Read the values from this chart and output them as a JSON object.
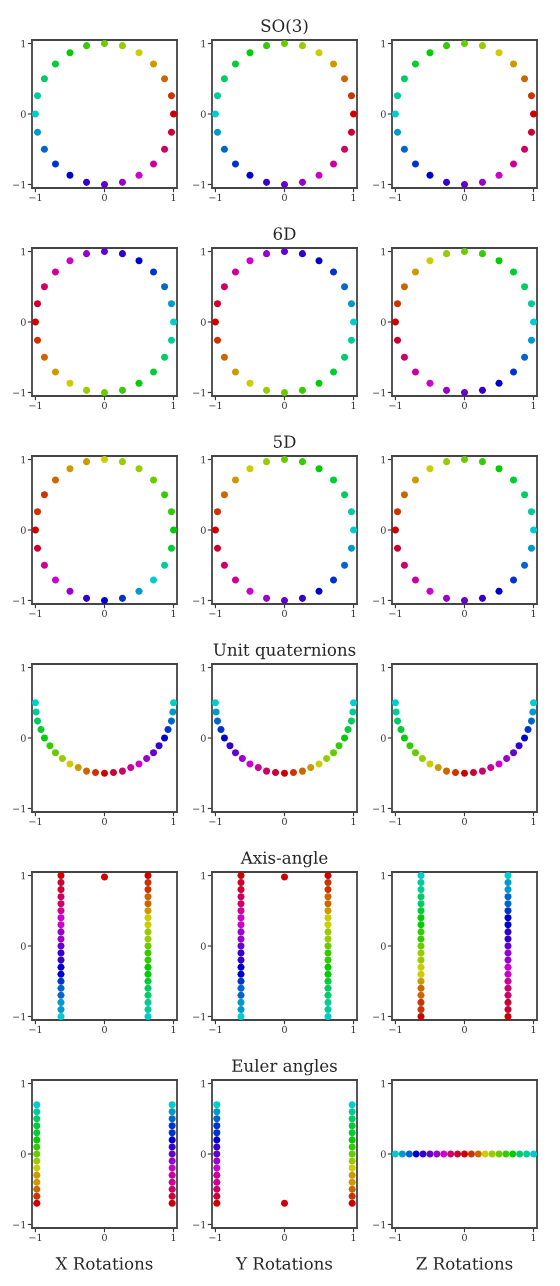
{
  "chart_data": [
    {
      "type": "scatter",
      "marker": "circle",
      "xlim": [
        -1.05,
        1.05
      ],
      "ylim": [
        -1.05,
        1.05
      ],
      "xticks": [
        -1,
        0,
        1
      ],
      "yticks": [
        -1,
        0,
        1
      ],
      "series": [
        {
          "x": [
            1,
            0.97,
            0.87,
            0.71,
            0.5,
            0.26,
            0,
            -0.26,
            -0.5,
            -0.71,
            -0.87,
            -0.97,
            -1,
            -0.97,
            -0.87,
            -0.71,
            -0.5,
            -0.26,
            0,
            0.26,
            0.5,
            0.71,
            0.87,
            0.97
          ],
          "values": [
            0,
            0.26,
            0.5,
            0.71,
            0.87,
            0.97,
            1,
            0.97,
            0.87,
            0.71,
            0.5,
            0.26,
            0,
            -0.26,
            -0.5,
            -0.71,
            -0.87,
            -0.97,
            -1,
            -0.97,
            -0.87,
            -0.71,
            -0.5,
            -0.26
          ],
          "colors": [
            "#cc0000",
            "#cc3300",
            "#cc6600",
            "#cc9900",
            "#cccc00",
            "#99cc00",
            "#66cc00",
            "#33cc00",
            "#00cc00",
            "#00cc33",
            "#00cc66",
            "#00cc99",
            "#00cccc",
            "#0099cc",
            "#0066cc",
            "#0033cc",
            "#0000cc",
            "#3300cc",
            "#6600cc",
            "#9900cc",
            "#cc00cc",
            "#cc0099",
            "#cc0066",
            "#cc0033"
          ]
        }
      ]
    },
    {
      "type": "scatter",
      "title": "SO(3)",
      "marker": "circle",
      "xlim": [
        -1.05,
        1.05
      ],
      "ylim": [
        -1.05,
        1.05
      ],
      "xticks": [
        -1,
        0,
        1
      ],
      "yticks": [
        -1,
        0,
        1
      ],
      "series": [
        {
          "x": [
            1,
            0.97,
            0.87,
            0.71,
            0.5,
            0.26,
            0,
            -0.26,
            -0.5,
            -0.71,
            -0.87,
            -0.97,
            -1,
            -0.97,
            -0.87,
            -0.71,
            -0.5,
            -0.26,
            0,
            0.26,
            0.5,
            0.71,
            0.87,
            0.97
          ],
          "values": [
            0,
            0.26,
            0.5,
            0.71,
            0.87,
            0.97,
            1,
            0.97,
            0.87,
            0.71,
            0.5,
            0.26,
            0,
            -0.26,
            -0.5,
            -0.71,
            -0.87,
            -0.97,
            -1,
            -0.97,
            -0.87,
            -0.71,
            -0.5,
            -0.26
          ],
          "colors": [
            "#cc0000",
            "#cc3300",
            "#cc6600",
            "#cc9900",
            "#cccc00",
            "#99cc00",
            "#66cc00",
            "#33cc00",
            "#00cc00",
            "#00cc33",
            "#00cc66",
            "#00cc99",
            "#00cccc",
            "#0099cc",
            "#0066cc",
            "#0033cc",
            "#0000cc",
            "#3300cc",
            "#6600cc",
            "#9900cc",
            "#cc00cc",
            "#cc0099",
            "#cc0066",
            "#cc0033"
          ]
        }
      ]
    },
    {
      "type": "scatter",
      "marker": "circle",
      "xlim": [
        -1.05,
        1.05
      ],
      "ylim": [
        -1.05,
        1.05
      ],
      "xticks": [
        -1,
        0,
        1
      ],
      "yticks": [
        -1,
        0,
        1
      ],
      "series": [
        {
          "x": [
            1,
            0.97,
            0.87,
            0.71,
            0.5,
            0.26,
            0,
            -0.26,
            -0.5,
            -0.71,
            -0.87,
            -0.97,
            -1,
            -0.97,
            -0.87,
            -0.71,
            -0.5,
            -0.26,
            0,
            0.26,
            0.5,
            0.71,
            0.87,
            0.97
          ],
          "values": [
            0,
            0.26,
            0.5,
            0.71,
            0.87,
            0.97,
            1,
            0.97,
            0.87,
            0.71,
            0.5,
            0.26,
            0,
            -0.26,
            -0.5,
            -0.71,
            -0.87,
            -0.97,
            -1,
            -0.97,
            -0.87,
            -0.71,
            -0.5,
            -0.26
          ],
          "colors": [
            "#cc0000",
            "#cc3300",
            "#cc6600",
            "#cc9900",
            "#cccc00",
            "#99cc00",
            "#66cc00",
            "#33cc00",
            "#00cc00",
            "#00cc33",
            "#00cc66",
            "#00cc99",
            "#00cccc",
            "#0099cc",
            "#0066cc",
            "#0033cc",
            "#0000cc",
            "#3300cc",
            "#6600cc",
            "#9900cc",
            "#cc00cc",
            "#cc0099",
            "#cc0066",
            "#cc0033"
          ]
        }
      ]
    },
    {
      "type": "scatter",
      "marker": "circle",
      "xlim": [
        -1.05,
        1.05
      ],
      "ylim": [
        -1.05,
        1.05
      ],
      "xticks": [
        -1,
        0,
        1
      ],
      "yticks": [
        -1,
        0,
        1
      ],
      "series": [
        {
          "x": [
            1,
            0.97,
            0.87,
            0.71,
            0.5,
            0.26,
            0,
            -0.26,
            -0.5,
            -0.71,
            -0.87,
            -0.97,
            -1,
            -0.97,
            -0.87,
            -0.71,
            -0.5,
            -0.26,
            0,
            0.26,
            0.5,
            0.71,
            0.87,
            0.97
          ],
          "values": [
            0,
            0.26,
            0.5,
            0.71,
            0.87,
            0.97,
            1,
            0.97,
            0.87,
            0.71,
            0.5,
            0.26,
            0,
            -0.26,
            -0.5,
            -0.71,
            -0.87,
            -0.97,
            -1,
            -0.97,
            -0.87,
            -0.71,
            -0.5,
            -0.26
          ],
          "colors": [
            "#00cccc",
            "#0099cc",
            "#0066cc",
            "#0033cc",
            "#0000cc",
            "#3300cc",
            "#6600cc",
            "#9900cc",
            "#cc00cc",
            "#cc0099",
            "#cc0066",
            "#cc0033",
            "#cc0000",
            "#cc3300",
            "#cc6600",
            "#cc9900",
            "#cccc00",
            "#99cc00",
            "#66cc00",
            "#33cc00",
            "#00cc00",
            "#00cc33",
            "#00cc66",
            "#00cc99"
          ]
        }
      ]
    },
    {
      "type": "scatter",
      "title": "6D",
      "marker": "circle",
      "xlim": [
        -1.05,
        1.05
      ],
      "ylim": [
        -1.05,
        1.05
      ],
      "xticks": [
        -1,
        0,
        1
      ],
      "yticks": [
        -1,
        0,
        1
      ],
      "series": [
        {
          "x": [
            1,
            0.97,
            0.87,
            0.71,
            0.5,
            0.26,
            0,
            -0.26,
            -0.5,
            -0.71,
            -0.87,
            -0.97,
            -1,
            -0.97,
            -0.87,
            -0.71,
            -0.5,
            -0.26,
            0,
            0.26,
            0.5,
            0.71,
            0.87,
            0.97
          ],
          "values": [
            0,
            0.26,
            0.5,
            0.71,
            0.87,
            0.97,
            1,
            0.97,
            0.87,
            0.71,
            0.5,
            0.26,
            0,
            -0.26,
            -0.5,
            -0.71,
            -0.87,
            -0.97,
            -1,
            -0.97,
            -0.87,
            -0.71,
            -0.5,
            -0.26
          ],
          "colors": [
            "#00cccc",
            "#0099cc",
            "#0066cc",
            "#0033cc",
            "#0000cc",
            "#3300cc",
            "#6600cc",
            "#9900cc",
            "#cc00cc",
            "#cc0099",
            "#cc0066",
            "#cc0033",
            "#cc0000",
            "#cc3300",
            "#cc6600",
            "#cc9900",
            "#cccc00",
            "#99cc00",
            "#66cc00",
            "#33cc00",
            "#00cc00",
            "#00cc33",
            "#00cc66",
            "#00cc99"
          ]
        }
      ]
    },
    {
      "type": "scatter",
      "marker": "circle",
      "xlim": [
        -1.05,
        1.05
      ],
      "ylim": [
        -1.05,
        1.05
      ],
      "xticks": [
        -1,
        0,
        1
      ],
      "yticks": [
        -1,
        0,
        1
      ],
      "series": [
        {
          "x": [
            1,
            0.97,
            0.87,
            0.71,
            0.5,
            0.26,
            0,
            -0.26,
            -0.5,
            -0.71,
            -0.87,
            -0.97,
            -1,
            -0.97,
            -0.87,
            -0.71,
            -0.5,
            -0.26,
            0,
            0.26,
            0.5,
            0.71,
            0.87,
            0.97
          ],
          "values": [
            0,
            0.26,
            0.5,
            0.71,
            0.87,
            0.97,
            1,
            0.97,
            0.87,
            0.71,
            0.5,
            0.26,
            0,
            -0.26,
            -0.5,
            -0.71,
            -0.87,
            -0.97,
            -1,
            -0.97,
            -0.87,
            -0.71,
            -0.5,
            -0.26
          ],
          "colors": [
            "#00cccc",
            "#00cc99",
            "#00cc66",
            "#00cc33",
            "#00cc00",
            "#33cc00",
            "#66cc00",
            "#99cc00",
            "#cccc00",
            "#cc9900",
            "#cc6600",
            "#cc3300",
            "#cc0000",
            "#cc0033",
            "#cc0066",
            "#cc0099",
            "#cc00cc",
            "#9900cc",
            "#6600cc",
            "#3300cc",
            "#0000cc",
            "#0033cc",
            "#0066cc",
            "#0099cc"
          ]
        }
      ]
    },
    {
      "type": "scatter",
      "marker": "circle",
      "xlim": [
        -1.05,
        1.05
      ],
      "ylim": [
        -1.05,
        1.05
      ],
      "xticks": [
        -1,
        0,
        1
      ],
      "yticks": [
        -1,
        0,
        1
      ],
      "series": [
        {
          "x": [
            1,
            0.97,
            0.87,
            0.71,
            0.5,
            0.26,
            0,
            -0.26,
            -0.5,
            -0.71,
            -0.87,
            -0.97,
            -1,
            -0.97,
            -0.87,
            -0.71,
            -0.5,
            -0.26,
            0,
            0.26,
            0.5,
            0.71,
            0.87,
            0.97
          ],
          "values": [
            0,
            0.26,
            0.5,
            0.71,
            0.87,
            0.97,
            1,
            0.97,
            0.87,
            0.71,
            0.5,
            0.26,
            0,
            -0.26,
            -0.5,
            -0.71,
            -0.87,
            -0.97,
            -1,
            -0.97,
            -0.87,
            -0.71,
            -0.5,
            -0.26
          ],
          "colors": [
            "#00cc00",
            "#33cc00",
            "#33cc00",
            "#66cc00",
            "#99cc00",
            "#99cc00",
            "#cccc00",
            "#cc9900",
            "#cc9900",
            "#cc6600",
            "#cc3300",
            "#cc3300",
            "#cc0000",
            "#cc0033",
            "#cc0099",
            "#cc00cc",
            "#9900cc",
            "#3300cc",
            "#0000cc",
            "#0033cc",
            "#0099cc",
            "#00cccc",
            "#00cc99",
            "#00cc33"
          ]
        }
      ]
    },
    {
      "type": "scatter",
      "title": "5D",
      "marker": "circle",
      "xlim": [
        -1.05,
        1.05
      ],
      "ylim": [
        -1.05,
        1.05
      ],
      "xticks": [
        -1,
        0,
        1
      ],
      "yticks": [
        -1,
        0,
        1
      ],
      "series": [
        {
          "x": [
            1,
            0.97,
            0.87,
            0.71,
            0.5,
            0.26,
            0,
            -0.26,
            -0.5,
            -0.71,
            -0.87,
            -0.97,
            -1,
            -0.97,
            -0.87,
            -0.71,
            -0.5,
            -0.26,
            0,
            0.26,
            0.5,
            0.71,
            0.87,
            0.97
          ],
          "values": [
            0,
            0.26,
            0.5,
            0.71,
            0.87,
            0.97,
            1,
            0.97,
            0.87,
            0.71,
            0.5,
            0.26,
            0,
            -0.26,
            -0.5,
            -0.71,
            -0.87,
            -0.97,
            -1,
            -0.97,
            -0.87,
            -0.71,
            -0.5,
            -0.26
          ],
          "colors": [
            "#00cccc",
            "#00cc99",
            "#00cc66",
            "#00cc33",
            "#00cc00",
            "#33cc00",
            "#66cc00",
            "#99cc00",
            "#cccc00",
            "#cc9900",
            "#cc6600",
            "#cc3300",
            "#cc0000",
            "#cc0033",
            "#cc0066",
            "#cc0099",
            "#cc00cc",
            "#9900cc",
            "#6600cc",
            "#3300cc",
            "#0000cc",
            "#0033cc",
            "#0066cc",
            "#0099cc"
          ]
        }
      ]
    },
    {
      "type": "scatter",
      "marker": "circle",
      "xlim": [
        -1.05,
        1.05
      ],
      "ylim": [
        -1.05,
        1.05
      ],
      "xticks": [
        -1,
        0,
        1
      ],
      "yticks": [
        -1,
        0,
        1
      ],
      "series": [
        {
          "x": [
            1,
            0.97,
            0.87,
            0.71,
            0.5,
            0.26,
            0,
            -0.26,
            -0.5,
            -0.71,
            -0.87,
            -0.97,
            -1,
            -0.97,
            -0.87,
            -0.71,
            -0.5,
            -0.26,
            0,
            0.26,
            0.5,
            0.71,
            0.87,
            0.97
          ],
          "values": [
            0,
            0.26,
            0.5,
            0.71,
            0.87,
            0.97,
            1,
            0.97,
            0.87,
            0.71,
            0.5,
            0.26,
            0,
            -0.26,
            -0.5,
            -0.71,
            -0.87,
            -0.97,
            -1,
            -0.97,
            -0.87,
            -0.71,
            -0.5,
            -0.26
          ],
          "colors": [
            "#00cccc",
            "#00cc99",
            "#00cc66",
            "#00cc33",
            "#00cc00",
            "#33cc00",
            "#66cc00",
            "#99cc00",
            "#cccc00",
            "#cc9900",
            "#cc6600",
            "#cc3300",
            "#cc0000",
            "#cc0033",
            "#cc0066",
            "#cc0099",
            "#cc00cc",
            "#9900cc",
            "#6600cc",
            "#3300cc",
            "#0000cc",
            "#0033cc",
            "#0066cc",
            "#0099cc"
          ]
        }
      ]
    },
    {
      "type": "scatter",
      "marker": "circle",
      "xlim": [
        -1.05,
        1.05
      ],
      "ylim": [
        -1.05,
        1.05
      ],
      "xticks": [
        -1,
        0,
        1
      ],
      "yticks": [
        -1,
        0,
        1
      ],
      "series": [
        {
          "x": [
            -1,
            -0.99,
            -0.97,
            -0.92,
            -0.87,
            -0.79,
            -0.71,
            -0.61,
            -0.5,
            -0.38,
            -0.26,
            -0.13,
            0,
            0.13,
            0.26,
            0.38,
            0.5,
            0.61,
            0.71,
            0.79,
            0.87,
            0.92,
            0.97,
            0.99,
            1
          ],
          "values": [
            0.5,
            0.37,
            0.24,
            0.12,
            0,
            -0.11,
            -0.21,
            -0.29,
            -0.37,
            -0.42,
            -0.47,
            -0.49,
            -0.5,
            -0.49,
            -0.47,
            -0.42,
            -0.37,
            -0.29,
            -0.21,
            -0.11,
            0,
            0.12,
            0.24,
            0.37,
            0.5
          ],
          "colors": [
            "#00cccc",
            "#00cc99",
            "#00cc66",
            "#00cc33",
            "#00cc00",
            "#33cc00",
            "#66cc00",
            "#99cc00",
            "#cccc00",
            "#cc9900",
            "#cc6600",
            "#cc3300",
            "#cc0000",
            "#cc0033",
            "#cc0066",
            "#cc0099",
            "#cc00cc",
            "#9900cc",
            "#6600cc",
            "#3300cc",
            "#0000cc",
            "#0033cc",
            "#0066cc",
            "#0099cc",
            "#00cccc"
          ]
        }
      ]
    },
    {
      "type": "scatter",
      "title": "Unit quaternions",
      "marker": "circle",
      "xlim": [
        -1.05,
        1.05
      ],
      "ylim": [
        -1.05,
        1.05
      ],
      "xticks": [
        -1,
        0,
        1
      ],
      "yticks": [
        -1,
        0,
        1
      ],
      "series": [
        {
          "x": [
            -1,
            -0.99,
            -0.97,
            -0.92,
            -0.87,
            -0.79,
            -0.71,
            -0.61,
            -0.5,
            -0.38,
            -0.26,
            -0.13,
            0,
            0.13,
            0.26,
            0.38,
            0.5,
            0.61,
            0.71,
            0.79,
            0.87,
            0.92,
            0.97,
            0.99,
            1
          ],
          "values": [
            0.5,
            0.37,
            0.24,
            0.12,
            0,
            -0.11,
            -0.21,
            -0.29,
            -0.37,
            -0.42,
            -0.47,
            -0.49,
            -0.5,
            -0.49,
            -0.47,
            -0.42,
            -0.37,
            -0.29,
            -0.21,
            -0.11,
            0,
            0.12,
            0.24,
            0.37,
            0.5
          ],
          "colors": [
            "#00cccc",
            "#0099cc",
            "#0066cc",
            "#0033cc",
            "#0000cc",
            "#3300cc",
            "#6600cc",
            "#9900cc",
            "#cc00cc",
            "#cc0099",
            "#cc0066",
            "#cc0033",
            "#cc0000",
            "#cc3300",
            "#cc6600",
            "#cc9900",
            "#cccc00",
            "#99cc00",
            "#66cc00",
            "#33cc00",
            "#00cc00",
            "#00cc33",
            "#00cc66",
            "#00cc99",
            "#00cccc"
          ]
        }
      ]
    },
    {
      "type": "scatter",
      "marker": "circle",
      "xlim": [
        -1.05,
        1.05
      ],
      "ylim": [
        -1.05,
        1.05
      ],
      "xticks": [
        -1,
        0,
        1
      ],
      "yticks": [
        -1,
        0,
        1
      ],
      "series": [
        {
          "x": [
            -1,
            -0.99,
            -0.97,
            -0.92,
            -0.87,
            -0.79,
            -0.71,
            -0.61,
            -0.5,
            -0.38,
            -0.26,
            -0.13,
            0,
            0.13,
            0.26,
            0.38,
            0.5,
            0.61,
            0.71,
            0.79,
            0.87,
            0.92,
            0.97,
            0.99,
            1
          ],
          "values": [
            0.5,
            0.37,
            0.24,
            0.12,
            0,
            -0.11,
            -0.21,
            -0.29,
            -0.37,
            -0.42,
            -0.47,
            -0.49,
            -0.5,
            -0.49,
            -0.47,
            -0.42,
            -0.37,
            -0.29,
            -0.21,
            -0.11,
            0,
            0.12,
            0.24,
            0.37,
            0.5
          ],
          "colors": [
            "#00cccc",
            "#00cc99",
            "#00cc66",
            "#00cc33",
            "#00cc00",
            "#33cc00",
            "#66cc00",
            "#99cc00",
            "#cccc00",
            "#cc9900",
            "#cc6600",
            "#cc3300",
            "#cc0000",
            "#cc0033",
            "#cc0066",
            "#cc0099",
            "#cc00cc",
            "#9900cc",
            "#6600cc",
            "#3300cc",
            "#0000cc",
            "#0033cc",
            "#0066cc",
            "#0099cc",
            "#00cccc"
          ]
        }
      ]
    },
    {
      "type": "scatter",
      "marker": "circle",
      "xlim": [
        -1.05,
        1.05
      ],
      "ylim": [
        -1.05,
        1.05
      ],
      "xticks": [
        -1,
        0,
        1
      ],
      "yticks": [
        -1,
        0,
        1
      ],
      "series": [
        {
          "x": [
            -0.63,
            -0.63,
            -0.63,
            -0.63,
            -0.63,
            -0.63,
            -0.63,
            -0.63,
            -0.63,
            -0.63,
            -0.63,
            -0.63,
            -0.63,
            -0.63,
            -0.63,
            -0.63,
            -0.63,
            -0.63,
            -0.63,
            -0.63,
            -0.63,
            0.63,
            0.63,
            0.63,
            0.63,
            0.63,
            0.63,
            0.63,
            0.63,
            0.63,
            0.63,
            0.63,
            0.63,
            0.63,
            0.63,
            0.63,
            0.63,
            0.63,
            0.63,
            0.63,
            0.63,
            0.63,
            0
          ],
          "values": [
            1,
            0.9,
            0.8,
            0.7,
            0.6,
            0.5,
            0.4,
            0.3,
            0.2,
            0.1,
            0,
            -0.1,
            -0.2,
            -0.3,
            -0.4,
            -0.5,
            -0.6,
            -0.7,
            -0.8,
            -0.9,
            -1,
            1,
            0.9,
            0.8,
            0.7,
            0.6,
            0.5,
            0.4,
            0.3,
            0.2,
            0.1,
            0,
            -0.1,
            -0.2,
            -0.3,
            -0.4,
            -0.5,
            -0.6,
            -0.7,
            -0.8,
            -0.9,
            -1,
            0.98
          ],
          "colors": [
            "#cc0000",
            "#cc0033",
            "#cc0033",
            "#cc0066",
            "#cc0066",
            "#cc0099",
            "#cc00cc",
            "#cc00cc",
            "#9900cc",
            "#9900cc",
            "#6600cc",
            "#3300cc",
            "#3300cc",
            "#0000cc",
            "#0000cc",
            "#0033cc",
            "#0066cc",
            "#0066cc",
            "#0099cc",
            "#0099cc",
            "#00cccc",
            "#cc0000",
            "#cc3300",
            "#cc3300",
            "#cc6600",
            "#cc6600",
            "#cc9900",
            "#cccc00",
            "#cccc00",
            "#99cc00",
            "#99cc00",
            "#66cc00",
            "#33cc00",
            "#33cc00",
            "#00cc00",
            "#00cc00",
            "#00cc33",
            "#00cc66",
            "#00cc66",
            "#00cc99",
            "#00cc99",
            "#00cccc",
            "#cc0000"
          ]
        }
      ]
    },
    {
      "type": "scatter",
      "title": "Axis-angle",
      "marker": "circle",
      "xlim": [
        -1.05,
        1.05
      ],
      "ylim": [
        -1.05,
        1.05
      ],
      "xticks": [
        -1,
        0,
        1
      ],
      "yticks": [
        -1,
        0,
        1
      ],
      "series": [
        {
          "x": [
            -0.63,
            -0.63,
            -0.63,
            -0.63,
            -0.63,
            -0.63,
            -0.63,
            -0.63,
            -0.63,
            -0.63,
            -0.63,
            -0.63,
            -0.63,
            -0.63,
            -0.63,
            -0.63,
            -0.63,
            -0.63,
            -0.63,
            -0.63,
            -0.63,
            0.63,
            0.63,
            0.63,
            0.63,
            0.63,
            0.63,
            0.63,
            0.63,
            0.63,
            0.63,
            0.63,
            0.63,
            0.63,
            0.63,
            0.63,
            0.63,
            0.63,
            0.63,
            0.63,
            0.63,
            0.63,
            0
          ],
          "values": [
            1,
            0.9,
            0.8,
            0.7,
            0.6,
            0.5,
            0.4,
            0.3,
            0.2,
            0.1,
            0,
            -0.1,
            -0.2,
            -0.3,
            -0.4,
            -0.5,
            -0.6,
            -0.7,
            -0.8,
            -0.9,
            -1,
            1,
            0.9,
            0.8,
            0.7,
            0.6,
            0.5,
            0.4,
            0.3,
            0.2,
            0.1,
            0,
            -0.1,
            -0.2,
            -0.3,
            -0.4,
            -0.5,
            -0.6,
            -0.7,
            -0.8,
            -0.9,
            -1,
            0.98
          ],
          "colors": [
            "#cc0000",
            "#cc0033",
            "#cc0033",
            "#cc0066",
            "#cc0066",
            "#cc0099",
            "#cc00cc",
            "#cc00cc",
            "#9900cc",
            "#9900cc",
            "#6600cc",
            "#3300cc",
            "#3300cc",
            "#0000cc",
            "#0000cc",
            "#0033cc",
            "#0066cc",
            "#0066cc",
            "#0099cc",
            "#0099cc",
            "#00cccc",
            "#cc0000",
            "#cc3300",
            "#cc3300",
            "#cc6600",
            "#cc6600",
            "#cc9900",
            "#cccc00",
            "#cccc00",
            "#99cc00",
            "#99cc00",
            "#66cc00",
            "#33cc00",
            "#33cc00",
            "#00cc00",
            "#00cc00",
            "#00cc33",
            "#00cc66",
            "#00cc66",
            "#00cc99",
            "#00cc99",
            "#00cccc",
            "#cc0000"
          ]
        }
      ]
    },
    {
      "type": "scatter",
      "marker": "circle",
      "xlim": [
        -1.05,
        1.05
      ],
      "ylim": [
        -1.05,
        1.05
      ],
      "xticks": [
        -1,
        0,
        1
      ],
      "yticks": [
        -1,
        0,
        1
      ],
      "series": [
        {
          "x": [
            -0.63,
            -0.63,
            -0.63,
            -0.63,
            -0.63,
            -0.63,
            -0.63,
            -0.63,
            -0.63,
            -0.63,
            -0.63,
            -0.63,
            -0.63,
            -0.63,
            -0.63,
            -0.63,
            -0.63,
            -0.63,
            -0.63,
            -0.63,
            -0.63,
            0.63,
            0.63,
            0.63,
            0.63,
            0.63,
            0.63,
            0.63,
            0.63,
            0.63,
            0.63,
            0.63,
            0.63,
            0.63,
            0.63,
            0.63,
            0.63,
            0.63,
            0.63,
            0.63,
            0.63,
            0.63
          ],
          "values": [
            1,
            0.9,
            0.8,
            0.7,
            0.6,
            0.5,
            0.4,
            0.3,
            0.2,
            0.1,
            0,
            -0.1,
            -0.2,
            -0.3,
            -0.4,
            -0.5,
            -0.6,
            -0.7,
            -0.8,
            -0.9,
            -1,
            1,
            0.9,
            0.8,
            0.7,
            0.6,
            0.5,
            0.4,
            0.3,
            0.2,
            0.1,
            0,
            -0.1,
            -0.2,
            -0.3,
            -0.4,
            -0.5,
            -0.6,
            -0.7,
            -0.8,
            -0.9,
            -1
          ],
          "colors": [
            "#00cccc",
            "#00cc99",
            "#00cc99",
            "#00cc66",
            "#00cc66",
            "#00cc33",
            "#00cc00",
            "#00cc00",
            "#33cc00",
            "#33cc00",
            "#66cc00",
            "#99cc00",
            "#99cc00",
            "#cccc00",
            "#cccc00",
            "#cc9900",
            "#cc6600",
            "#cc6600",
            "#cc3300",
            "#cc3300",
            "#cc0000",
            "#00cccc",
            "#0099cc",
            "#0099cc",
            "#0066cc",
            "#0066cc",
            "#0033cc",
            "#0000cc",
            "#0000cc",
            "#3300cc",
            "#3300cc",
            "#6600cc",
            "#9900cc",
            "#9900cc",
            "#cc00cc",
            "#cc00cc",
            "#cc0099",
            "#cc0066",
            "#cc0066",
            "#cc0033",
            "#cc0033",
            "#cc0000"
          ]
        }
      ]
    },
    {
      "type": "scatter",
      "xlabel": "X Rotations",
      "marker": "circle",
      "xlim": [
        -1.05,
        1.05
      ],
      "ylim": [
        -1.05,
        1.05
      ],
      "xticks": [
        -1,
        0,
        1
      ],
      "yticks": [
        -1,
        0,
        1
      ],
      "series": [
        {
          "x": [
            -0.98,
            -0.98,
            -0.98,
            -0.98,
            -0.98,
            -0.98,
            -0.98,
            -0.98,
            -0.98,
            -0.98,
            -0.98,
            -0.98,
            -0.98,
            -0.98,
            -0.98,
            0.98,
            0.98,
            0.98,
            0.98,
            0.98,
            0.98,
            0.98,
            0.98,
            0.98,
            0.98,
            0.98,
            0.98,
            0.98,
            0.98,
            0.98
          ],
          "values": [
            0.7,
            0.6,
            0.5,
            0.4,
            0.3,
            0.2,
            0.1,
            0,
            -0.1,
            -0.2,
            -0.3,
            -0.4,
            -0.5,
            -0.6,
            -0.7,
            0.7,
            0.6,
            0.5,
            0.4,
            0.3,
            0.2,
            0.1,
            0,
            -0.1,
            -0.2,
            -0.3,
            -0.4,
            -0.5,
            -0.6,
            -0.7
          ],
          "colors": [
            "#00cccc",
            "#00cc99",
            "#00cc66",
            "#00cc33",
            "#00cc33",
            "#00cc00",
            "#33cc00",
            "#66cc00",
            "#99cc00",
            "#cccc00",
            "#cc9900",
            "#cc9900",
            "#cc6600",
            "#cc3300",
            "#cc0000",
            "#00cccc",
            "#0099cc",
            "#0066cc",
            "#0033cc",
            "#0033cc",
            "#0000cc",
            "#3300cc",
            "#6600cc",
            "#9900cc",
            "#cc00cc",
            "#cc0099",
            "#cc0099",
            "#cc0066",
            "#cc0033",
            "#cc0000"
          ]
        }
      ]
    },
    {
      "type": "scatter",
      "title": "Euler angles",
      "xlabel": "Y Rotations",
      "marker": "circle",
      "xlim": [
        -1.05,
        1.05
      ],
      "ylim": [
        -1.05,
        1.05
      ],
      "xticks": [
        -1,
        0,
        1
      ],
      "yticks": [
        -1,
        0,
        1
      ],
      "series": [
        {
          "x": [
            -0.98,
            -0.98,
            -0.98,
            -0.98,
            -0.98,
            -0.98,
            -0.98,
            -0.98,
            -0.98,
            -0.98,
            -0.98,
            -0.98,
            -0.98,
            -0.98,
            -0.98,
            0.98,
            0.98,
            0.98,
            0.98,
            0.98,
            0.98,
            0.98,
            0.98,
            0.98,
            0.98,
            0.98,
            0.98,
            0.98,
            0.98,
            0.98,
            0
          ],
          "values": [
            0.7,
            0.6,
            0.5,
            0.4,
            0.3,
            0.2,
            0.1,
            0,
            -0.1,
            -0.2,
            -0.3,
            -0.4,
            -0.5,
            -0.6,
            -0.7,
            0.7,
            0.6,
            0.5,
            0.4,
            0.3,
            0.2,
            0.1,
            0,
            -0.1,
            -0.2,
            -0.3,
            -0.4,
            -0.5,
            -0.6,
            -0.7,
            -0.7
          ],
          "colors": [
            "#00cccc",
            "#0099cc",
            "#0066cc",
            "#0033cc",
            "#0033cc",
            "#0000cc",
            "#3300cc",
            "#6600cc",
            "#9900cc",
            "#cc00cc",
            "#cc0099",
            "#cc0099",
            "#cc0066",
            "#cc0033",
            "#cc0000",
            "#00cccc",
            "#00cc99",
            "#00cc66",
            "#00cc33",
            "#00cc33",
            "#00cc00",
            "#33cc00",
            "#66cc00",
            "#99cc00",
            "#cccc00",
            "#cc9900",
            "#cc9900",
            "#cc6600",
            "#cc3300",
            "#cc0000",
            "#cc0000"
          ]
        }
      ]
    },
    {
      "type": "scatter",
      "xlabel": "Z Rotations",
      "marker": "circle",
      "xlim": [
        -1.05,
        1.05
      ],
      "ylim": [
        -1.05,
        1.05
      ],
      "xticks": [
        -1,
        0,
        1
      ],
      "yticks": [
        -1,
        0,
        1
      ],
      "series": [
        {
          "x": [
            -1,
            -0.9,
            -0.8,
            -0.7,
            -0.6,
            -0.5,
            -0.4,
            -0.3,
            -0.2,
            -0.1,
            0,
            0.1,
            0.2,
            0.3,
            0.4,
            0.5,
            0.6,
            0.7,
            0.8,
            0.9,
            1
          ],
          "values": [
            0,
            0,
            0,
            0,
            0,
            0,
            0,
            0,
            0,
            0,
            0,
            0,
            0,
            0,
            0,
            0,
            0,
            0,
            0,
            0,
            0
          ],
          "colors": [
            "#00cccc",
            "#0099cc",
            "#0066cc",
            "#0000cc",
            "#3300cc",
            "#6600cc",
            "#9900cc",
            "#cc00cc",
            "#cc0066",
            "#cc0033",
            "#cc0000",
            "#cc3300",
            "#cc6600",
            "#cccc00",
            "#99cc00",
            "#66cc00",
            "#33cc00",
            "#00cc00",
            "#00cc66",
            "#00cc99",
            "#00cccc"
          ]
        }
      ]
    }
  ]
}
